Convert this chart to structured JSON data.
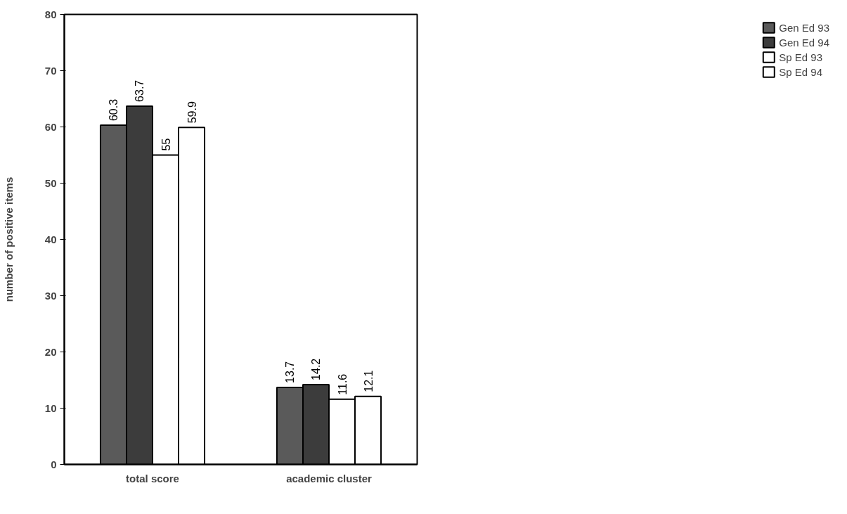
{
  "chart_data": {
    "type": "bar",
    "ylabel": "number of positive items",
    "categories": [
      "total score",
      "academic cluster"
    ],
    "series": [
      {
        "name": "Gen Ed 93",
        "color": "#5a5a5a",
        "values": [
          60.3,
          13.7
        ]
      },
      {
        "name": "Gen Ed 94",
        "color": "#3c3c3c",
        "values": [
          63.7,
          14.2
        ]
      },
      {
        "name": "Sp Ed 93",
        "color": "#ffffff",
        "values": [
          55,
          11.6
        ]
      },
      {
        "name": "Sp Ed 94",
        "color": "#ffffff",
        "values": [
          59.9,
          12.1
        ]
      }
    ],
    "ylim": [
      0,
      80
    ],
    "yticks": [
      0,
      10,
      20,
      30,
      40,
      50,
      60,
      70,
      80
    ],
    "data_labels": true,
    "legend": "right",
    "grid": false
  }
}
